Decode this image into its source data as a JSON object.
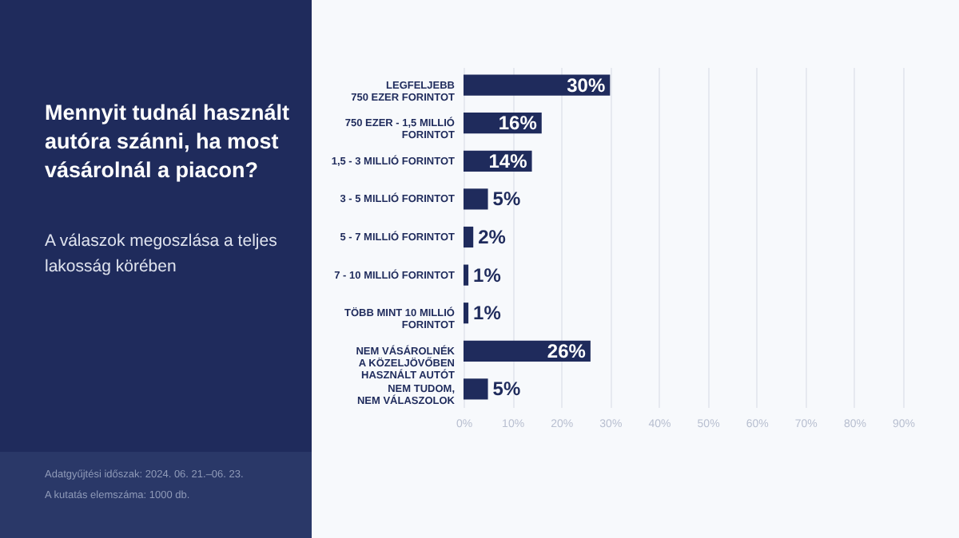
{
  "chart_data": {
    "type": "bar",
    "orientation": "horizontal",
    "title": "Mennyit tudnál használt autóra szánni, ha most vásárolnál a piacon?",
    "subtitle": "A válaszok megoszlása a teljes lakosság körében",
    "categories": [
      "LEGFELJEBB\n750 EZER FORINTOT",
      "750 EZER - 1,5 MILLIÓ\nFORINTOT",
      "1,5 - 3 MILLIÓ FORINTOT",
      "3 - 5 MILLIÓ FORINTOT",
      "5 - 7 MILLIÓ FORINTOT",
      "7 - 10 MILLIÓ FORINTOT",
      "TÖBB MINT 10 MILLIÓ\nFORINTOT",
      "NEM VÁSÁROLNÉK\nA KÖZELJÖVŐBEN\nHASZNÁLT AUTÓT",
      "NEM TUDOM,\nNEM VÁLASZOLOK"
    ],
    "values": [
      30,
      16,
      14,
      5,
      2,
      1,
      1,
      26,
      5
    ],
    "value_labels": [
      "30%",
      "16%",
      "14%",
      "5%",
      "2%",
      "1%",
      "1%",
      "26%",
      "5%"
    ],
    "color": "#1f2b5c",
    "xlim": [
      0,
      90
    ],
    "xticks": [
      {
        "value": 0,
        "label": "0%"
      },
      {
        "value": 10,
        "label": "10%"
      },
      {
        "value": 20,
        "label": "20%"
      },
      {
        "value": 30,
        "label": "30%"
      },
      {
        "value": 40,
        "label": "40%"
      },
      {
        "value": 50,
        "label": "50%"
      },
      {
        "value": 60,
        "label": "60%"
      },
      {
        "value": 70,
        "label": "70%"
      },
      {
        "value": 80,
        "label": "80%"
      },
      {
        "value": 90,
        "label": "90%"
      }
    ],
    "grid": "x",
    "annotations": [
      "Adatgyűjtési időszak: 2024. 06. 21.–06. 23.",
      "A kutatás elemszáma: 1000 db."
    ]
  }
}
